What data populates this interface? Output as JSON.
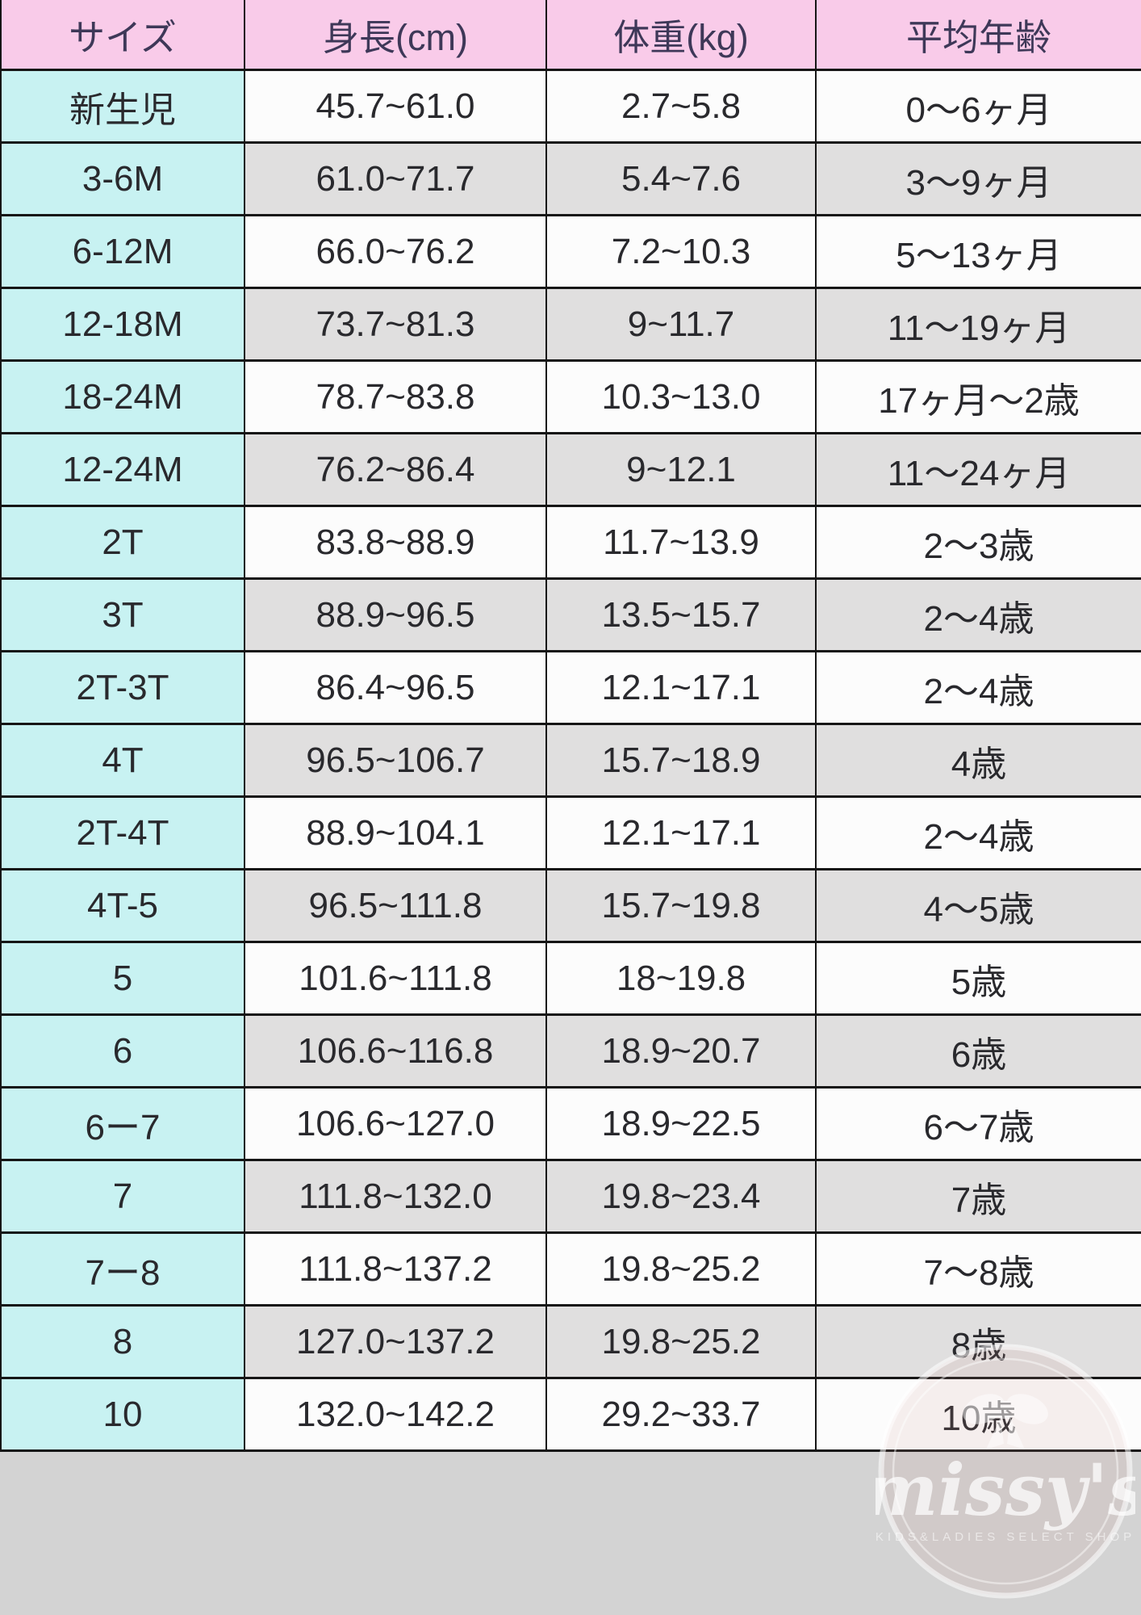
{
  "table": {
    "columns": [
      {
        "key": "size",
        "label": "サイズ"
      },
      {
        "key": "height_cm",
        "label": "身長(cm)"
      },
      {
        "key": "weight_kg",
        "label": "体重(kg)"
      },
      {
        "key": "age",
        "label": "平均年齢"
      }
    ],
    "rows": [
      {
        "size": "新生児",
        "height_cm": "45.7~61.0",
        "weight_kg": "2.7~5.8",
        "age": "0〜6ヶ月"
      },
      {
        "size": "3-6M",
        "height_cm": "61.0~71.7",
        "weight_kg": "5.4~7.6",
        "age": "3〜9ヶ月"
      },
      {
        "size": "6-12M",
        "height_cm": "66.0~76.2",
        "weight_kg": "7.2~10.3",
        "age": "5〜13ヶ月"
      },
      {
        "size": "12-18M",
        "height_cm": "73.7~81.3",
        "weight_kg": "9~11.7",
        "age": "11〜19ヶ月"
      },
      {
        "size": "18-24M",
        "height_cm": "78.7~83.8",
        "weight_kg": "10.3~13.0",
        "age": "17ヶ月〜2歳"
      },
      {
        "size": "12-24M",
        "height_cm": "76.2~86.4",
        "weight_kg": "9~12.1",
        "age": "11〜24ヶ月"
      },
      {
        "size": "2T",
        "height_cm": "83.8~88.9",
        "weight_kg": "11.7~13.9",
        "age": "2〜3歳"
      },
      {
        "size": "3T",
        "height_cm": "88.9~96.5",
        "weight_kg": "13.5~15.7",
        "age": "2〜4歳"
      },
      {
        "size": "2T-3T",
        "height_cm": "86.4~96.5",
        "weight_kg": "12.1~17.1",
        "age": "2〜4歳"
      },
      {
        "size": "4T",
        "height_cm": "96.5~106.7",
        "weight_kg": "15.7~18.9",
        "age": "4歳"
      },
      {
        "size": "2T-4T",
        "height_cm": "88.9~104.1",
        "weight_kg": "12.1~17.1",
        "age": "2〜4歳"
      },
      {
        "size": "4T-5",
        "height_cm": "96.5~111.8",
        "weight_kg": "15.7~19.8",
        "age": "4〜5歳"
      },
      {
        "size": "5",
        "height_cm": "101.6~111.8",
        "weight_kg": "18~19.8",
        "age": "5歳"
      },
      {
        "size": "6",
        "height_cm": "106.6~116.8",
        "weight_kg": "18.9~20.7",
        "age": "6歳"
      },
      {
        "size": "6ー7",
        "height_cm": "106.6~127.0",
        "weight_kg": "18.9~22.5",
        "age": "6〜7歳"
      },
      {
        "size": "7",
        "height_cm": "111.8~132.0",
        "weight_kg": "19.8~23.4",
        "age": "7歳"
      },
      {
        "size": "7ー8",
        "height_cm": "111.8~137.2",
        "weight_kg": "19.8~25.2",
        "age": "7〜8歳"
      },
      {
        "size": "8",
        "height_cm": "127.0~137.2",
        "weight_kg": "19.8~25.2",
        "age": "8歳"
      },
      {
        "size": "10",
        "height_cm": "132.0~142.2",
        "weight_kg": "29.2~33.7",
        "age": "10歳"
      }
    ]
  },
  "watermark": {
    "brand": "missy's",
    "tagline": "KIDS&LADIES SELECT SHOP",
    "icon": "ribbon-bow"
  },
  "colors": {
    "header_bg": "#f9cbe9",
    "header_text": "#3e3858",
    "size_column_bg": "#c8f2f2",
    "row_odd_bg": "#fcfcfc",
    "row_even_bg": "#e0dfdf",
    "body_text": "#29292d",
    "grid_border": "#161616",
    "footer_bg": "#d3d3d3",
    "watermark_tint": "#c7908a"
  }
}
